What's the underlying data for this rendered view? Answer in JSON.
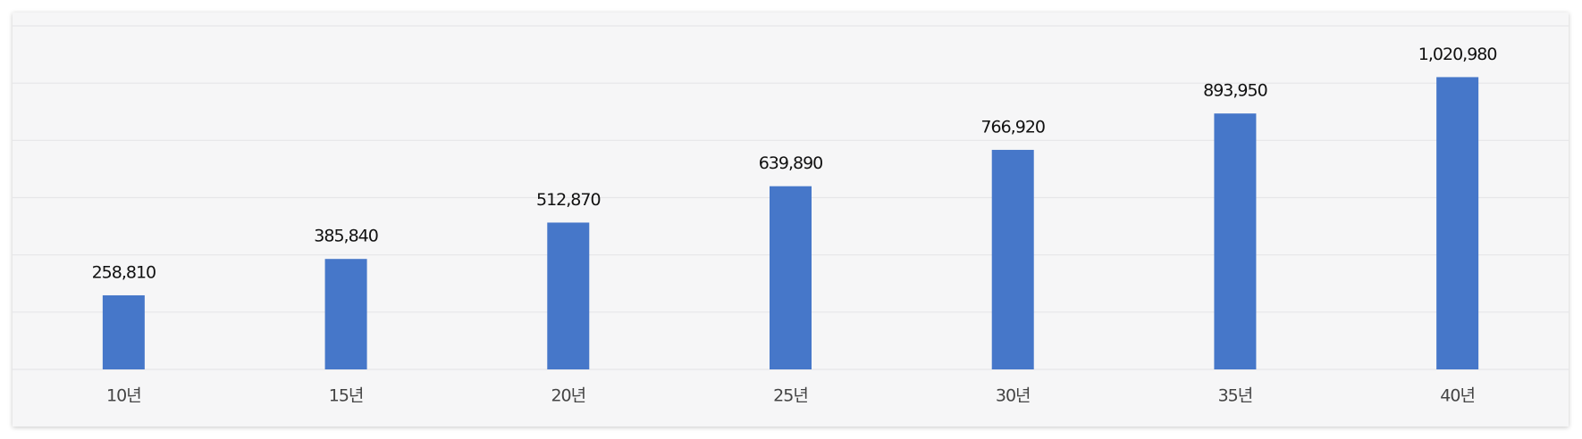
{
  "chart_data": {
    "type": "bar",
    "categories": [
      "10년",
      "15년",
      "20년",
      "25년",
      "30년",
      "35년",
      "40년"
    ],
    "values": [
      258810,
      385840,
      512870,
      639890,
      766920,
      893950,
      1020980
    ],
    "value_labels": [
      "258,810",
      "385,840",
      "512,870",
      "639,890",
      "766,920",
      "893,950",
      "1,020,980"
    ],
    "color": "#4677c9",
    "ylim": [
      0,
      1200000
    ],
    "yticks": [
      0,
      200000,
      400000,
      600000,
      800000,
      1000000,
      1200000
    ],
    "grid": true
  }
}
